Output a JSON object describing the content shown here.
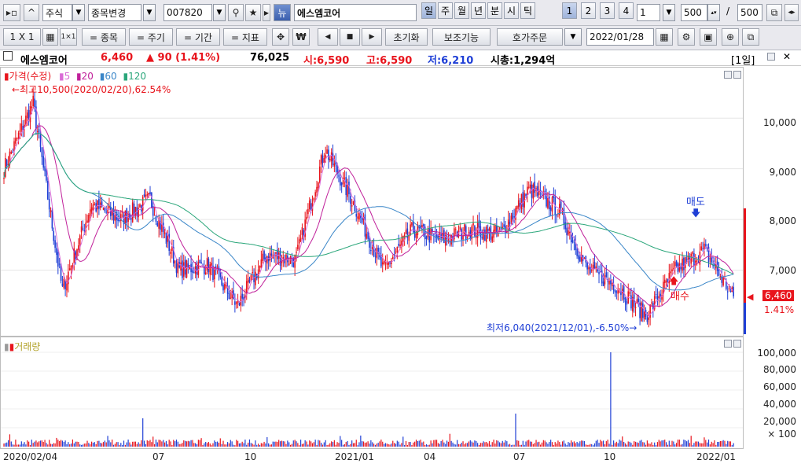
{
  "toolbar1": {
    "asset_type": "주식",
    "change_item": "종목변경",
    "code": "007820",
    "news": "뉴",
    "stock_name": "에스엠코어",
    "periods": [
      "일",
      "주",
      "월",
      "년",
      "분",
      "시",
      "틱"
    ],
    "period_nums": [
      "1",
      "2",
      "3",
      "4"
    ],
    "interval_value": "1",
    "count_value": "500",
    "slash": "/",
    "total_count": "500"
  },
  "toolbar2": {
    "layout": "1 X 1",
    "items": "= 종목",
    "cycle": "= 주기",
    "period": "= 기간",
    "indicator": "= 지표",
    "won": "₩",
    "reset": "초기화",
    "aux": "보조기능",
    "order": "호가주문",
    "date": "2022/01/28"
  },
  "info": {
    "name": "에스엠코어",
    "price": "6,460",
    "change": "▲ 90 (1.41%)",
    "volume": "76,025",
    "open": "시:6,590",
    "high": "고:6,590",
    "low": "저:6,210",
    "mcap": "시총:1,294억",
    "period": "[1일]"
  },
  "price_pane": {
    "legend_title": "가격(수정)",
    "ma_labels": [
      "5",
      "20",
      "60",
      "120"
    ],
    "high_note": "←최고10,500(2020/02/20),62.54%",
    "low_note": "최저6,040(2021/12/01),-6.50%→",
    "sell_label": "매도",
    "buy_label": "매수",
    "y_ticks": [
      "10,000",
      "9,000",
      "8,000",
      "7,000"
    ],
    "current_price": "6,460",
    "current_change": "1.41%"
  },
  "volume_pane": {
    "legend_title": "거래량",
    "y_ticks": [
      "100,000",
      "80,000",
      "60,000",
      "40,000",
      "20,000"
    ],
    "unit": "× 100"
  },
  "x_labels": [
    "2020/02/04",
    "07",
    "10",
    "2021/01",
    "04",
    "07",
    "10",
    "2022/01"
  ],
  "colors": {
    "up": "#e8141c",
    "down": "#1f3fd6",
    "ma5": "#d96bd6",
    "ma20": "#c0209a",
    "ma60": "#3a86c8",
    "ma120": "#2aa67a"
  },
  "chart_data": {
    "type": "candlestick",
    "y_range": [
      6000,
      10500
    ],
    "volume_range": [
      0,
      100000
    ],
    "close_path": [
      {
        "x": "2020/02/04",
        "y": 9000
      },
      {
        "x": "2020/02/20",
        "y": 10300
      },
      {
        "x": "2020/03/20",
        "y": 6600
      },
      {
        "x": "2020/05",
        "y": 8300
      },
      {
        "x": "2020/06",
        "y": 8000
      },
      {
        "x": "2020/07",
        "y": 8400
      },
      {
        "x": "2020/09",
        "y": 7000
      },
      {
        "x": "2020/10",
        "y": 7100
      },
      {
        "x": "2020/11",
        "y": 6300
      },
      {
        "x": "2020/12",
        "y": 7300
      },
      {
        "x": "2021/01",
        "y": 7200
      },
      {
        "x": "2021/01/25",
        "y": 9400
      },
      {
        "x": "2021/02",
        "y": 8300
      },
      {
        "x": "2021/03",
        "y": 7000
      },
      {
        "x": "2021/04",
        "y": 7800
      },
      {
        "x": "2021/05",
        "y": 7600
      },
      {
        "x": "2021/06",
        "y": 7800
      },
      {
        "x": "2021/07",
        "y": 7700
      },
      {
        "x": "2021/08",
        "y": 8600
      },
      {
        "x": "2021/09",
        "y": 8200
      },
      {
        "x": "2021/10",
        "y": 7000
      },
      {
        "x": "2021/11",
        "y": 6700
      },
      {
        "x": "2021/12/01",
        "y": 6100
      },
      {
        "x": "2021/12",
        "y": 7000
      },
      {
        "x": "2022/01",
        "y": 7400
      },
      {
        "x": "2022/01/28",
        "y": 6460
      }
    ],
    "volume_spikes": [
      {
        "x": "2020/07",
        "y": 30000
      },
      {
        "x": "2021/08",
        "y": 35000
      },
      {
        "x": "2021/11",
        "y": 100000
      }
    ]
  }
}
